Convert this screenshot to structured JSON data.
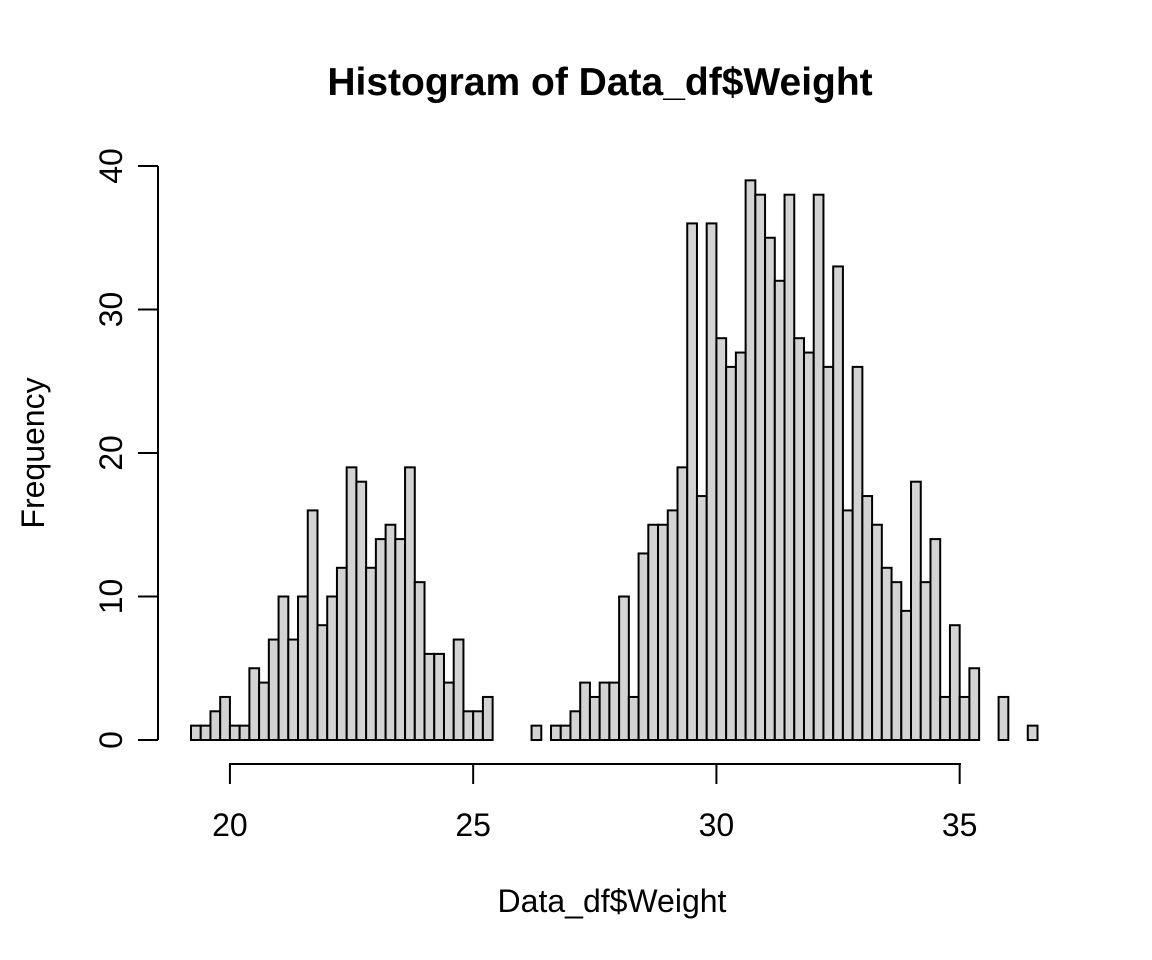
{
  "chart_data": {
    "type": "bar",
    "subtype": "histogram",
    "title": "Histogram of Data_df$Weight",
    "xlabel": "Data_df$Weight",
    "ylabel": "Frequency",
    "bin_start": 19.2,
    "bin_width": 0.2,
    "counts": [
      1,
      1,
      2,
      3,
      1,
      1,
      5,
      4,
      7,
      10,
      7,
      10,
      16,
      8,
      10,
      12,
      19,
      18,
      12,
      14,
      15,
      14,
      19,
      11,
      6,
      6,
      4,
      7,
      2,
      2,
      3,
      0,
      0,
      0,
      0,
      1,
      0,
      1,
      1,
      2,
      4,
      3,
      4,
      4,
      10,
      3,
      13,
      15,
      15,
      16,
      19,
      36,
      17,
      36,
      28,
      26,
      27,
      39,
      38,
      35,
      32,
      38,
      28,
      27,
      38,
      26,
      33,
      16,
      26,
      17,
      15,
      12,
      11,
      9,
      18,
      11,
      14,
      3,
      8,
      3,
      5,
      0,
      0,
      3,
      0,
      0,
      1
    ],
    "x_ticks": [
      20,
      25,
      30,
      35
    ],
    "y_ticks": [
      0,
      10,
      20,
      30,
      40
    ],
    "xlim": [
      19.2,
      36.6
    ],
    "ylim": [
      0,
      40
    ],
    "grid": "off",
    "legend": "none",
    "bar_fill_color": "#d3d3d3",
    "bar_border_color": "#000000",
    "axis_color": "#000000",
    "background_color": "#ffffff"
  }
}
